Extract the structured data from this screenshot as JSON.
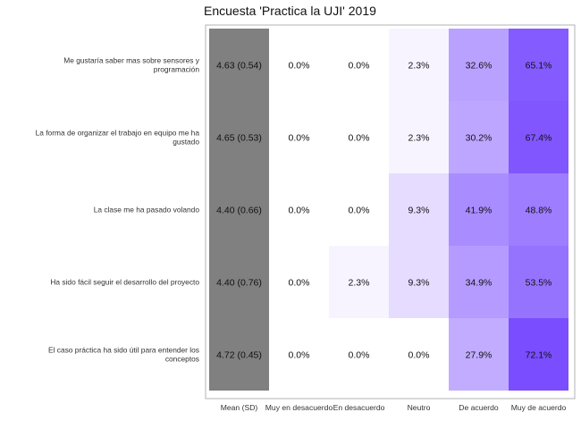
{
  "chart_data": {
    "type": "heatmap",
    "title": "Encuesta 'Practica la UJI' 2019",
    "columns": [
      "Mean (SD)",
      "Muy en desacuerdo",
      "En desacuerdo",
      "Neutro",
      "De acuerdo",
      "Muy de acuerdo"
    ],
    "rows": [
      {
        "label_lines": [
          "Me gustaría saber mas sobre sensores y",
          "programación"
        ],
        "mean_sd": "4.63 (0.54)",
        "values": [
          0.0,
          0.0,
          2.3,
          32.6,
          65.1
        ]
      },
      {
        "label_lines": [
          "La forma de organizar el trabajo en equipo me ha",
          "gustado"
        ],
        "mean_sd": "4.65 (0.53)",
        "values": [
          0.0,
          0.0,
          2.3,
          30.2,
          67.4
        ]
      },
      {
        "label_lines": [
          "La clase me ha pasado volando"
        ],
        "mean_sd": "4.40 (0.66)",
        "values": [
          0.0,
          0.0,
          9.3,
          41.9,
          48.8
        ]
      },
      {
        "label_lines": [
          "Ha sido fácil seguir el desarrollo del proyecto"
        ],
        "mean_sd": "4.40 (0.76)",
        "values": [
          0.0,
          2.3,
          9.3,
          34.9,
          53.5
        ]
      },
      {
        "label_lines": [
          "El caso práctica ha sido útil para entender los",
          "conceptos"
        ],
        "mean_sd": "4.72 (0.45)",
        "values": [
          0.0,
          0.0,
          0.0,
          27.9,
          72.1
        ]
      }
    ],
    "value_unit": "%",
    "color_low": "#ffffff",
    "color_high": "#7a4dff",
    "mean_column_color": "#808080",
    "panel_border_color": "#b3b3b3"
  }
}
